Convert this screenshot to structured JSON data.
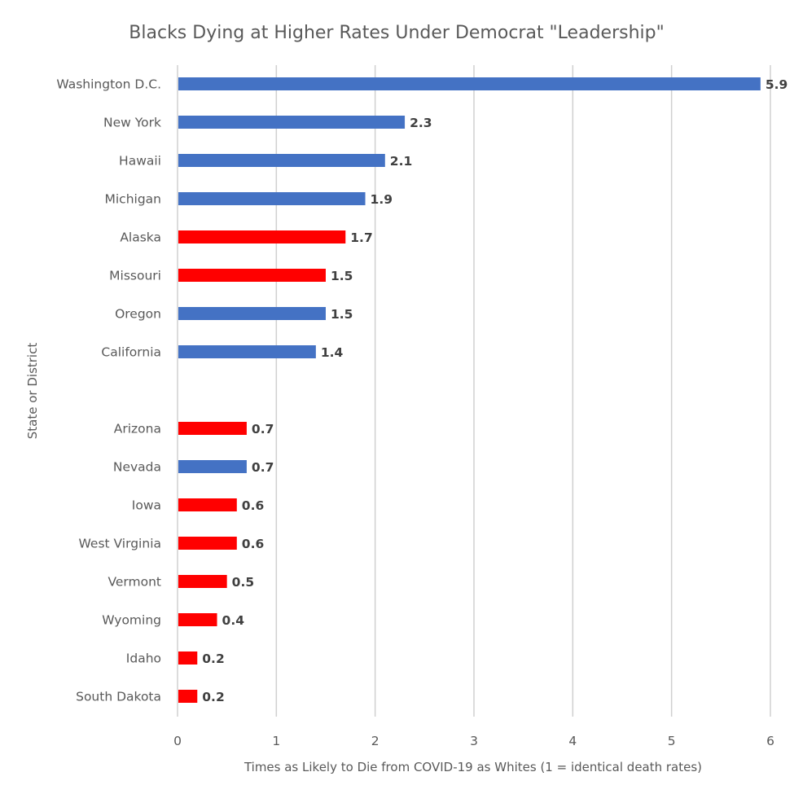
{
  "chart_data": {
    "type": "bar",
    "orientation": "horizontal",
    "title": "Blacks Dying at Higher Rates Under Democrat \"Leadership\"",
    "xlabel": "Times as Likely to Die from COVID-19 as Whites (1 = identical death rates)",
    "ylabel": "State or District",
    "xlim": [
      0,
      6
    ],
    "xticks": [
      "0",
      "1",
      "2",
      "3",
      "4",
      "5",
      "6"
    ],
    "grid": true,
    "legend": "none",
    "colors": {
      "democrat": "#4472C4",
      "republican": "#FF0000"
    },
    "categories": [
      {
        "label": "Washington D.C.",
        "value": 5.9,
        "value_label": "5.9",
        "party": "democrat"
      },
      {
        "label": "New York",
        "value": 2.3,
        "value_label": "2.3",
        "party": "democrat"
      },
      {
        "label": "Hawaii",
        "value": 2.1,
        "value_label": "2.1",
        "party": "democrat"
      },
      {
        "label": "Michigan",
        "value": 1.9,
        "value_label": "1.9",
        "party": "democrat"
      },
      {
        "label": "Alaska",
        "value": 1.7,
        "value_label": "1.7",
        "party": "republican"
      },
      {
        "label": "Missouri",
        "value": 1.5,
        "value_label": "1.5",
        "party": "republican"
      },
      {
        "label": "Oregon",
        "value": 1.5,
        "value_label": "1.5",
        "party": "democrat"
      },
      {
        "label": "California",
        "value": 1.4,
        "value_label": "1.4",
        "party": "democrat"
      },
      {
        "label": "",
        "value": null,
        "value_label": "",
        "party": ""
      },
      {
        "label": "Arizona",
        "value": 0.7,
        "value_label": "0.7",
        "party": "republican"
      },
      {
        "label": "Nevada",
        "value": 0.7,
        "value_label": "0.7",
        "party": "democrat"
      },
      {
        "label": "Iowa",
        "value": 0.6,
        "value_label": "0.6",
        "party": "republican"
      },
      {
        "label": "West Virginia",
        "value": 0.6,
        "value_label": "0.6",
        "party": "republican"
      },
      {
        "label": "Vermont",
        "value": 0.5,
        "value_label": "0.5",
        "party": "republican"
      },
      {
        "label": "Wyoming",
        "value": 0.4,
        "value_label": "0.4",
        "party": "republican"
      },
      {
        "label": "Idaho",
        "value": 0.2,
        "value_label": "0.2",
        "party": "republican"
      },
      {
        "label": "South Dakota",
        "value": 0.2,
        "value_label": "0.2",
        "party": "republican"
      }
    ]
  }
}
